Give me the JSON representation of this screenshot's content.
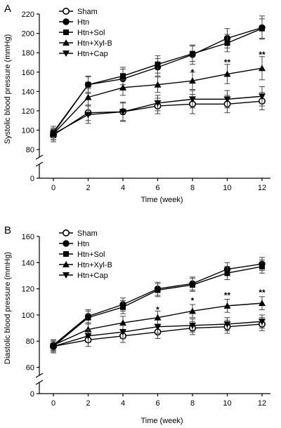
{
  "chart_data": [
    {
      "type": "line",
      "panel_label": "A",
      "xlabel": "Time (week)",
      "ylabel": "Systolic blood pressure (mmHg)",
      "x": [
        0,
        2,
        4,
        6,
        8,
        10,
        12
      ],
      "xticks": [
        "0",
        "2",
        "4",
        "6",
        "8",
        "10",
        "12"
      ],
      "ylim": [
        0,
        220
      ],
      "yticks": [
        0,
        80,
        100,
        120,
        140,
        160,
        180,
        200,
        220
      ],
      "ytick_labels": [
        "0",
        "80",
        "100",
        "120",
        "140",
        "160",
        "180",
        "200",
        "220"
      ],
      "axis_break": [
        20,
        75
      ],
      "legend_position": "top-left",
      "series": [
        {
          "name": "Sham",
          "marker": "open-circle",
          "values": [
            95,
            118,
            119,
            125,
            127,
            127,
            130
          ],
          "error": [
            7,
            8,
            9,
            8,
            10,
            9,
            9
          ]
        },
        {
          "name": "Htn",
          "marker": "circle",
          "values": [
            97,
            147,
            153,
            165,
            178,
            195,
            206
          ],
          "error": [
            7,
            9,
            10,
            9,
            10,
            10,
            12
          ]
        },
        {
          "name": "Htn+Sol",
          "marker": "square",
          "values": [
            98,
            147,
            156,
            168,
            179,
            190,
            205
          ],
          "error": [
            6,
            8,
            9,
            9,
            8,
            9,
            10
          ]
        },
        {
          "name": "Htn+Xyl-B",
          "marker": "triangle-up",
          "values": [
            96,
            134,
            144,
            147,
            151,
            158,
            164
          ],
          "error": [
            6,
            9,
            8,
            8,
            9,
            10,
            12
          ]
        },
        {
          "name": "Htn+Cap",
          "marker": "triangle-down",
          "values": [
            96,
            116,
            119,
            128,
            132,
            132,
            135
          ],
          "error": [
            6,
            9,
            10,
            8,
            9,
            9,
            10
          ]
        }
      ],
      "annotations": [
        {
          "x": 8,
          "y": 160,
          "text": "*"
        },
        {
          "x": 10,
          "y": 170,
          "text": "**"
        },
        {
          "x": 12,
          "y": 178,
          "text": "**"
        }
      ]
    },
    {
      "type": "line",
      "panel_label": "B",
      "xlabel": "Time (week)",
      "ylabel": "Diastolic blood pressure (mmHg)",
      "x": [
        0,
        2,
        4,
        6,
        8,
        10,
        12
      ],
      "xticks": [
        "0",
        "2",
        "4",
        "6",
        "8",
        "10",
        "12"
      ],
      "ylim": [
        0,
        160
      ],
      "yticks": [
        0,
        60,
        80,
        100,
        120,
        140,
        160
      ],
      "ytick_labels": [
        "0",
        "60",
        "80",
        "100",
        "120",
        "140",
        "160"
      ],
      "axis_break": [
        20,
        56
      ],
      "legend_position": "top-left",
      "series": [
        {
          "name": "Sham",
          "marker": "open-circle",
          "values": [
            76,
            81,
            84,
            87,
            90,
            91,
            93
          ],
          "error": [
            5,
            5,
            5,
            5,
            5,
            5,
            5
          ]
        },
        {
          "name": "Htn",
          "marker": "circle",
          "values": [
            77,
            99,
            108,
            120,
            124,
            135,
            139
          ],
          "error": [
            4,
            5,
            5,
            5,
            5,
            5,
            5
          ]
        },
        {
          "name": "Htn+Sol",
          "marker": "square",
          "values": [
            76,
            98,
            106,
            119,
            123,
            132,
            137
          ],
          "error": [
            4,
            5,
            5,
            5,
            5,
            5,
            5
          ]
        },
        {
          "name": "Htn+Xyl-B",
          "marker": "triangle-up",
          "values": [
            77,
            89,
            94,
            98,
            103,
            107,
            109
          ],
          "error": [
            4,
            5,
            5,
            5,
            5,
            5,
            5
          ]
        },
        {
          "name": "Htn+Cap",
          "marker": "triangle-down",
          "values": [
            76,
            84,
            87,
            91,
            92,
            93,
            95
          ],
          "error": [
            4,
            5,
            5,
            5,
            5,
            5,
            5
          ]
        }
      ],
      "annotations": [
        {
          "x": 6,
          "y": 104,
          "text": "*"
        },
        {
          "x": 8,
          "y": 111,
          "text": "*"
        },
        {
          "x": 10,
          "y": 115,
          "text": "**"
        },
        {
          "x": 12,
          "y": 117,
          "text": "**"
        }
      ]
    }
  ]
}
